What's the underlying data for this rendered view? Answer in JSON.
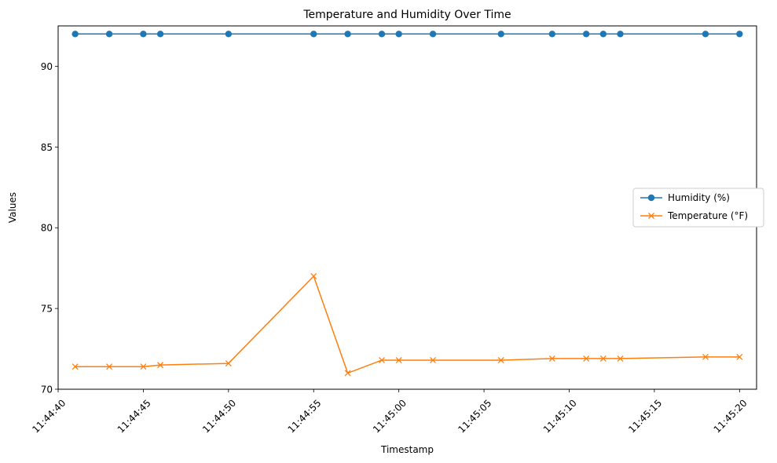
{
  "chart_data": {
    "type": "line",
    "title": "Temperature and Humidity Over Time",
    "xlabel": "Timestamp",
    "ylabel": "Values",
    "x": [
      "11:44:41",
      "11:44:43",
      "11:44:45",
      "11:44:46",
      "11:44:50",
      "11:44:55",
      "11:44:57",
      "11:44:59",
      "11:45:00",
      "11:45:02",
      "11:45:06",
      "11:45:09",
      "11:45:11",
      "11:45:12",
      "11:45:13",
      "11:45:18",
      "11:45:20"
    ],
    "xlim": [
      "11:44:40",
      "11:45:21"
    ],
    "x_ticks": [
      "11:44:40",
      "11:44:45",
      "11:44:50",
      "11:44:55",
      "11:45:00",
      "11:45:05",
      "11:45:10",
      "11:45:15",
      "11:45:20"
    ],
    "ylim": [
      70,
      92.5
    ],
    "y_ticks": [
      70,
      75,
      80,
      85,
      90
    ],
    "grid": false,
    "legend_position": "center-right",
    "series": [
      {
        "name": "Humidity (%)",
        "color": "#1f77b4",
        "marker": "circle",
        "values": [
          92,
          92,
          92,
          92,
          92,
          92,
          92,
          92,
          92,
          92,
          92,
          92,
          92,
          92,
          92,
          92,
          92
        ]
      },
      {
        "name": "Temperature (°F)",
        "color": "#ff7f0e",
        "marker": "x",
        "values": [
          71.4,
          71.4,
          71.4,
          71.5,
          71.6,
          77.0,
          71.0,
          71.8,
          71.8,
          71.8,
          71.8,
          71.9,
          71.9,
          71.9,
          71.9,
          72.0,
          72.0
        ]
      }
    ]
  }
}
